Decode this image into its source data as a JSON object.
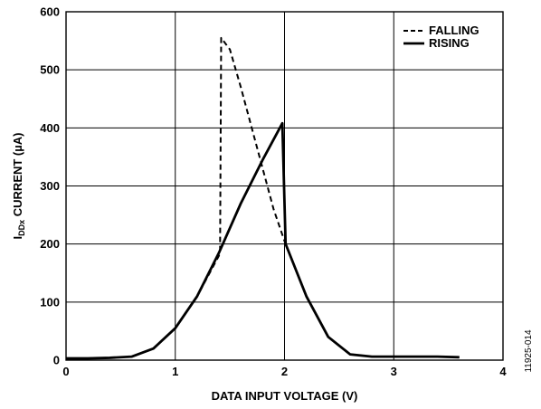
{
  "chart_data": {
    "type": "line",
    "title": "",
    "ylabel_main": "I",
    "ylabel_subscript": "DDx",
    "ylabel_rest": " CURRENT (µA)",
    "xlabel": "DATA INPUT VOLTAGE (V)",
    "xlim": [
      0,
      4
    ],
    "ylim": [
      0,
      600
    ],
    "x_ticks": [
      "0",
      "1",
      "2",
      "3",
      "4"
    ],
    "y_ticks": [
      "0",
      "100",
      "200",
      "300",
      "400",
      "500",
      "600"
    ],
    "grid": true,
    "legend_position": "top-right",
    "series": [
      {
        "name": "FALLING",
        "style": "dashed",
        "color": "#000000",
        "x": [
          0,
          0.2,
          0.4,
          0.6,
          0.8,
          1.0,
          1.2,
          1.4,
          1.41,
          1.42,
          1.5,
          1.6,
          1.7,
          1.8,
          1.9,
          2.0,
          2.2,
          2.4,
          2.6,
          2.8,
          3.0,
          3.2,
          3.4,
          3.6
        ],
        "y": [
          3,
          3,
          4,
          6,
          20,
          55,
          110,
          180,
          190,
          555,
          535,
          470,
          400,
          330,
          260,
          205,
          110,
          40,
          10,
          6,
          6,
          6,
          6,
          5
        ]
      },
      {
        "name": "RISING",
        "style": "solid",
        "color": "#000000",
        "x": [
          0,
          0.2,
          0.4,
          0.6,
          0.8,
          1.0,
          1.2,
          1.4,
          1.6,
          1.8,
          1.98,
          2.01,
          2.2,
          2.4,
          2.6,
          2.8,
          3.0,
          3.2,
          3.4,
          3.6
        ],
        "y": [
          3,
          3,
          4,
          6,
          20,
          55,
          110,
          185,
          270,
          345,
          408,
          200,
          110,
          40,
          10,
          6,
          6,
          6,
          6,
          5
        ]
      }
    ],
    "side_note": "11925-014"
  }
}
